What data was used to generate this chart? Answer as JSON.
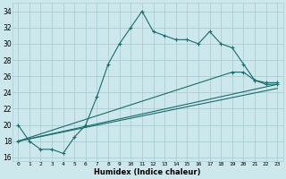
{
  "xlabel": "Humidex (Indice chaleur)",
  "background_color": "#cce8ed",
  "grid_color": "#aacdd5",
  "line_color": "#1a6b6b",
  "xlim": [
    -0.5,
    23.5
  ],
  "ylim": [
    15.5,
    35.0
  ],
  "xticks": [
    0,
    1,
    2,
    3,
    4,
    5,
    6,
    7,
    8,
    9,
    10,
    11,
    12,
    13,
    14,
    15,
    16,
    17,
    18,
    19,
    20,
    21,
    22,
    23
  ],
  "yticks": [
    16,
    18,
    20,
    22,
    24,
    26,
    28,
    30,
    32,
    34
  ],
  "series1_x": [
    0,
    1,
    2,
    3,
    4,
    5,
    6,
    7,
    8,
    9,
    10,
    11,
    12,
    13,
    14,
    15,
    16,
    17,
    18,
    19,
    20,
    21,
    22,
    23
  ],
  "series1_y": [
    20,
    18,
    17,
    17,
    16.5,
    18.5,
    20,
    23.5,
    27.5,
    30,
    32,
    34,
    31.5,
    31,
    30.5,
    30.5,
    30,
    31.5,
    30,
    29.5,
    27.5,
    25.5,
    25,
    25
  ],
  "series2_x": [
    0,
    23
  ],
  "series2_y": [
    18.0,
    25.0
  ],
  "series3_x": [
    0,
    23
  ],
  "series3_y": [
    18.0,
    24.5
  ],
  "series4_x": [
    0,
    19,
    20,
    21,
    22,
    23
  ],
  "series4_y": [
    18.0,
    26.5,
    26.5,
    25.5,
    25.2,
    25.2
  ]
}
